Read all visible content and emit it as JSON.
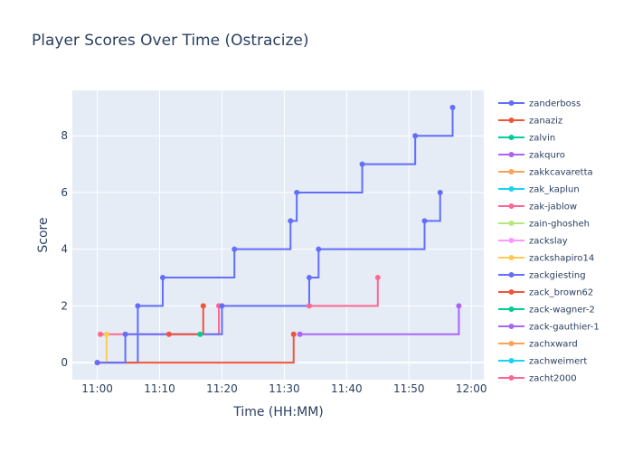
{
  "chart_data": {
    "type": "line",
    "title": "Player Scores Over Time (Ostracize)",
    "xlabel": "Time (HH:MM)",
    "ylabel": "Score",
    "xlim": [
      "10:56",
      "12:02"
    ],
    "ylim": [
      -0.6,
      9.6
    ],
    "x_ticks": [
      "11:00",
      "11:10",
      "11:20",
      "11:30",
      "11:40",
      "11:50",
      "12:00"
    ],
    "y_ticks": [
      0,
      2,
      4,
      6,
      8
    ],
    "grid": true,
    "legend_position": "right",
    "line_shape": "step",
    "series": [
      {
        "name": "zanderboss",
        "color": "#636efa",
        "points": [
          [
            "11:00",
            0
          ],
          [
            "11:06.5",
            2
          ],
          [
            "11:10.5",
            3
          ],
          [
            "11:22",
            4
          ],
          [
            "11:31",
            5
          ],
          [
            "11:32",
            6
          ],
          [
            "11:42.5",
            7
          ],
          [
            "11:51",
            8
          ],
          [
            "11:57",
            9
          ]
        ]
      },
      {
        "name": "zanaziz",
        "color": "#ef553b",
        "points": [
          [
            "11:00",
            0
          ],
          [
            "11:31.5",
            1
          ]
        ]
      },
      {
        "name": "zalvin",
        "color": "#00cc96",
        "points": []
      },
      {
        "name": "zakquro",
        "color": "#ab63fa",
        "points": []
      },
      {
        "name": "zakkcavaretta",
        "color": "#ffa15a",
        "points": []
      },
      {
        "name": "zak_kaplun",
        "color": "#19d3f3",
        "points": []
      },
      {
        "name": "zak-jablow",
        "color": "#ff6692",
        "points": [
          [
            "11:00.5",
            1
          ],
          [
            "11:19.5",
            2
          ]
        ]
      },
      {
        "name": "zain-ghosheh",
        "color": "#b6e880",
        "points": []
      },
      {
        "name": "zackslay",
        "color": "#ff97ff",
        "points": []
      },
      {
        "name": "zackshapiro14",
        "color": "#fecb52",
        "points": [
          [
            "11:00",
            0
          ],
          [
            "11:01.5",
            1
          ]
        ]
      },
      {
        "name": "zackgiesting",
        "color": "#636efa",
        "points": [
          [
            "11:00",
            0
          ],
          [
            "11:04.5",
            1
          ],
          [
            "11:20",
            2
          ],
          [
            "11:34",
            3
          ],
          [
            "11:35.5",
            4
          ],
          [
            "11:52.5",
            5
          ],
          [
            "11:55",
            6
          ]
        ]
      },
      {
        "name": "zack_brown62",
        "color": "#ef553b",
        "points": [
          [
            "11:11.5",
            1
          ],
          [
            "11:17",
            2
          ]
        ]
      },
      {
        "name": "zack-wagner-2",
        "color": "#00cc96",
        "points": [
          [
            "11:16.5",
            1
          ]
        ]
      },
      {
        "name": "zack-gauthier-1",
        "color": "#ab63fa",
        "points": [
          [
            "11:32.5",
            1
          ],
          [
            "11:58",
            2
          ]
        ]
      },
      {
        "name": "zachxward",
        "color": "#ffa15a",
        "points": []
      },
      {
        "name": "zachweimert",
        "color": "#19d3f3",
        "points": []
      },
      {
        "name": "zacht2000",
        "color": "#ff6692",
        "points": [
          [
            "11:34",
            2
          ],
          [
            "11:45",
            3
          ]
        ]
      }
    ]
  }
}
